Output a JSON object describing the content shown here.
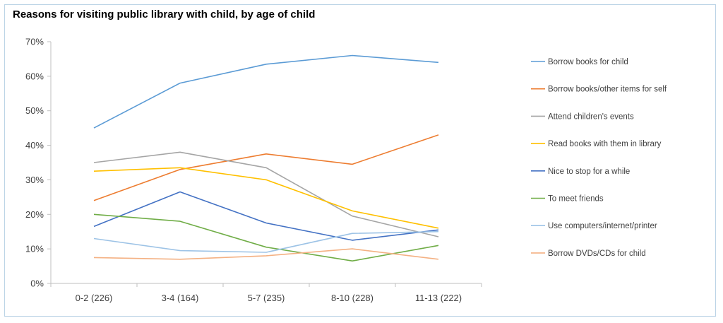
{
  "chart_data": {
    "type": "line",
    "title": "Reasons for visiting public library with child, by age of child",
    "xlabel": "",
    "ylabel": "",
    "categories": [
      "0-2 (226)",
      "3-4 (164)",
      "5-7 (235)",
      "8-10 (228)",
      "11-13 (222)"
    ],
    "y_tick_labels": [
      "0%",
      "10%",
      "20%",
      "30%",
      "40%",
      "50%",
      "60%",
      "70%"
    ],
    "ylim": [
      0,
      70
    ],
    "grid": false,
    "legend_position": "right",
    "series": [
      {
        "name": "Borrow books for child",
        "color": "#5b9bd5",
        "values": [
          45,
          58,
          63.5,
          66,
          64
        ]
      },
      {
        "name": "Borrow books/other items for self",
        "color": "#ed7d31",
        "values": [
          24,
          33,
          37.5,
          34.5,
          43
        ]
      },
      {
        "name": "Attend children's events",
        "color": "#a5a5a5",
        "values": [
          35,
          38,
          33.5,
          19.5,
          13.5
        ]
      },
      {
        "name": "Read books with them in library",
        "color": "#ffc000",
        "values": [
          32.5,
          33.5,
          30,
          21,
          16
        ]
      },
      {
        "name": "Nice to stop for a while",
        "color": "#4472c4",
        "values": [
          16.5,
          26.5,
          17.5,
          12.5,
          15.5
        ]
      },
      {
        "name": "To meet friends",
        "color": "#70ad47",
        "values": [
          20,
          18,
          10.5,
          6.5,
          11
        ]
      },
      {
        "name": "Use computers/internet/printer",
        "color": "#9dc3e6",
        "values": [
          13,
          9.5,
          9,
          14.5,
          15
        ]
      },
      {
        "name": "Borrow DVDs/CDs for child",
        "color": "#f4b183",
        "values": [
          7.5,
          7,
          8,
          10,
          7
        ]
      }
    ]
  }
}
